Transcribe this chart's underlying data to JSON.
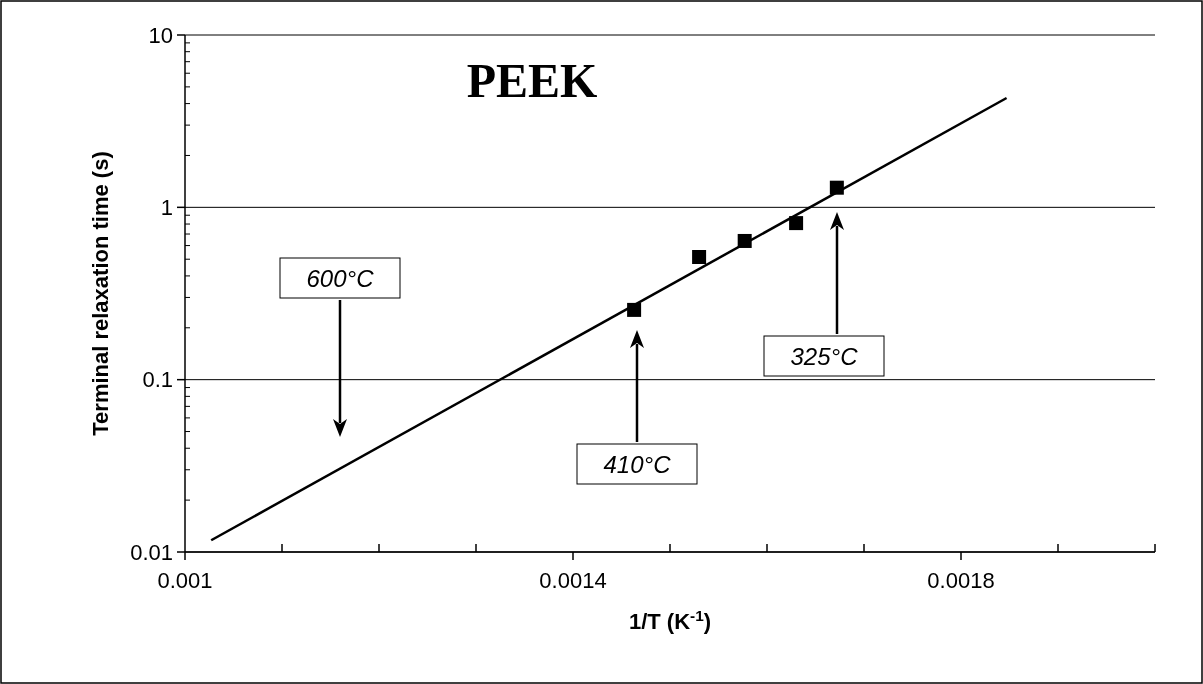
{
  "chart_data": {
    "type": "scatter",
    "title": "PEEK",
    "xlabel": "1/T (K$^{-1}$)",
    "ylabel": "Terminal relaxation time (s)",
    "series": [
      {
        "color": "#000000",
        "x": [
          0.001463,
          0.00153,
          0.001577,
          0.00163,
          0.001672
        ],
        "values": [
          0.254,
          0.515,
          0.638,
          0.81,
          1.3
        ],
        "marker": "square"
      },
      {
        "type": "line",
        "color": "#000000",
        "x": [
          0.001027,
          0.001847
        ],
        "values": [
          0.0117,
          4.31
        ],
        "marker": "none",
        "line_style": "solid"
      }
    ],
    "annotations": [
      "600°C",
      "410°C",
      "325°C"
    ],
    "xlim": [
      0.001,
      0.002
    ],
    "xticks": [
      0.001,
      {
        "value": 0.0011,
        "label": null
      },
      {
        "value": 0.0012,
        "label": null
      },
      {
        "value": 0.0013,
        "label": null
      },
      0.0014,
      {
        "value": 0.0015,
        "label": null
      },
      {
        "value": 0.0016,
        "label": null
      },
      {
        "value": 0.0017,
        "label": null
      },
      0.0018,
      {
        "value": 0.0019,
        "label": null
      },
      {
        "value": 0.002,
        "label": null
      }
    ],
    "ylim": [
      0.01,
      10
    ],
    "yticks": [
      0.01,
      0.1,
      1,
      10
    ],
    "log": "y",
    "grid": "y"
  }
}
